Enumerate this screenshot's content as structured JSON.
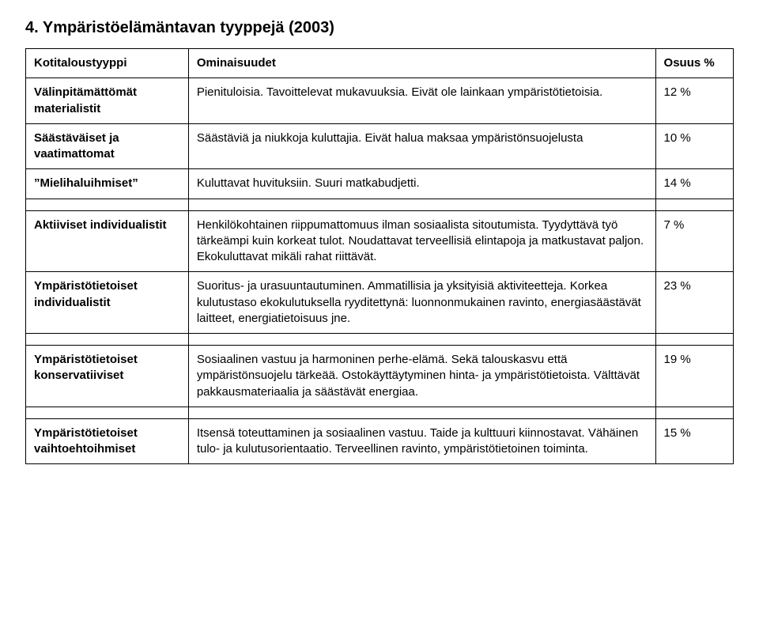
{
  "title": "4. Ympäristöelämäntavan tyyppejä (2003)",
  "table": {
    "columns": [
      "Kotitaloustyyppi",
      "Ominaisuudet",
      "Osuus %"
    ],
    "rows": [
      {
        "type": "Välinpitämättömät materialistit",
        "desc": "Pienituloisia. Tavoittelevat mukavuuksia. Eivät ole lainkaan ympäristötietoisia.",
        "share": "12 %"
      },
      {
        "type": "Säästäväiset ja vaatimattomat",
        "desc": "Säästäviä ja niukkoja kuluttajia. Eivät halua maksaa ympäristönsuojelusta",
        "share": "10 %"
      },
      {
        "type": "”Mielihaluihmiset”",
        "desc": "Kuluttavat huvituksiin. Suuri matkabudjetti.",
        "share": "14 %"
      },
      {
        "type": "Aktiiviset individualistit",
        "desc": "Henkilökohtainen riippumattomuus ilman sosiaalista sitoutumista. Tyydyttävä työ tärkeämpi kuin korkeat tulot. Noudattavat terveellisiä elintapoja ja matkustavat paljon. Ekokuluttavat mikäli rahat riittävät.",
        "share": "7 %"
      },
      {
        "type": "Ympäristötietoiset individualistit",
        "desc": "Suoritus- ja urasuuntautuminen. Ammatillisia ja yksityisiä aktiviteetteja. Korkea kulutustaso ekokulutuksella ryyditettynä: luonnonmukainen ravinto, energiasäästävät laitteet, energiatietoisuus jne.",
        "share": "23 %"
      },
      {
        "type": "Ympäristötietoiset konservatiiviset",
        "desc": "Sosiaalinen vastuu ja harmoninen perhe-elämä. Sekä talouskasvu että ympäristönsuojelu tärkeää. Ostokäyttäytyminen hinta- ja ympäristötietoista. Välttävät pakkausmateriaalia ja säästävät energiaa.",
        "share": "19 %"
      },
      {
        "type": "Ympäristötietoiset vaihtoehtoihmiset",
        "desc": "Itsensä toteuttaminen ja sosiaalinen vastuu. Taide ja kulttuuri kiinnostavat. Vähäinen tulo- ja kulutusorientaatio. Terveellinen ravinto, ympäristötietoinen toiminta.",
        "share": "15 %"
      }
    ],
    "spacer_after": [
      2,
      4,
      5
    ],
    "col_widths_pct": [
      23,
      66,
      11
    ],
    "border_color": "#000000",
    "background_color": "#ffffff",
    "font_family": "Arial",
    "header_fontsize_pt": 11,
    "cell_fontsize_pt": 11,
    "title_fontsize_pt": 15
  }
}
